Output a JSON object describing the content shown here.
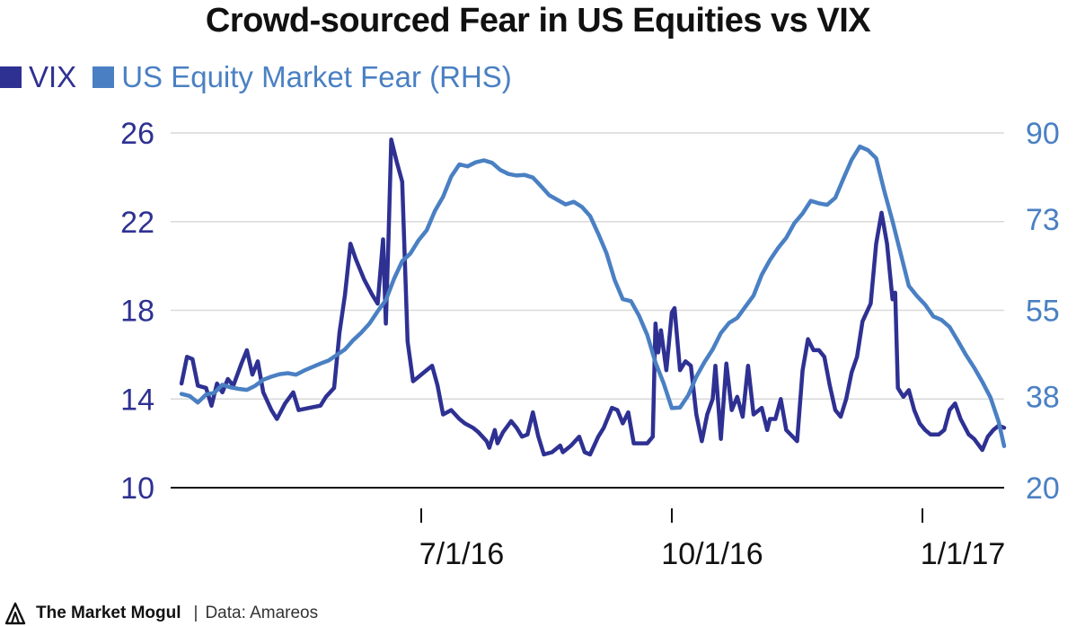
{
  "title": "Crowd-sourced Fear in US Equities vs VIX",
  "footer": {
    "brand": "The Market Mogul",
    "separator": "|",
    "source": "Data: Amareos"
  },
  "colors": {
    "vix": "#2e3192",
    "fear": "#4a80c3",
    "grid": "#d9d9d9",
    "axis": "#111111"
  },
  "chart_data": {
    "type": "line",
    "title": "Crowd-sourced Fear in US Equities vs VIX",
    "x_ticks": [
      {
        "date": "2016-07-01",
        "label": "7/1/16"
      },
      {
        "date": "2016-10-01",
        "label": "10/1/16"
      },
      {
        "date": "2017-01-01",
        "label": "1/1/17"
      }
    ],
    "x_range": [
      "2016-03-31",
      "2017-01-31"
    ],
    "y_left": {
      "ticks": [
        10,
        14,
        18,
        22,
        26
      ],
      "range": [
        10,
        26
      ]
    },
    "y_right": {
      "ticks": [
        20,
        38,
        55,
        73,
        90
      ],
      "range": [
        20,
        90
      ]
    },
    "grid": true,
    "legend": "top-left",
    "series": [
      {
        "name": "VIX",
        "axis": "left",
        "color": "#2e3192",
        "points": [
          [
            "2016-04-04",
            14.7
          ],
          [
            "2016-04-06",
            15.9
          ],
          [
            "2016-04-08",
            15.8
          ],
          [
            "2016-04-10",
            14.6
          ],
          [
            "2016-04-13",
            14.5
          ],
          [
            "2016-04-15",
            13.7
          ],
          [
            "2016-04-17",
            14.7
          ],
          [
            "2016-04-19",
            14.3
          ],
          [
            "2016-04-21",
            14.9
          ],
          [
            "2016-04-23",
            14.6
          ],
          [
            "2016-04-26",
            15.6
          ],
          [
            "2016-04-28",
            16.2
          ],
          [
            "2016-04-30",
            15.1
          ],
          [
            "2016-05-02",
            15.7
          ],
          [
            "2016-05-04",
            14.3
          ],
          [
            "2016-05-07",
            13.5
          ],
          [
            "2016-05-09",
            13.1
          ],
          [
            "2016-05-12",
            13.8
          ],
          [
            "2016-05-15",
            14.3
          ],
          [
            "2016-05-17",
            13.5
          ],
          [
            "2016-05-21",
            13.6
          ],
          [
            "2016-05-25",
            13.7
          ],
          [
            "2016-05-27",
            14.1
          ],
          [
            "2016-05-30",
            14.5
          ],
          [
            "2016-06-01",
            17.0
          ],
          [
            "2016-06-03",
            18.7
          ],
          [
            "2016-06-05",
            21.0
          ],
          [
            "2016-06-07",
            20.3
          ],
          [
            "2016-06-10",
            19.4
          ],
          [
            "2016-06-13",
            18.7
          ],
          [
            "2016-06-15",
            18.3
          ],
          [
            "2016-06-17",
            21.2
          ],
          [
            "2016-06-18",
            17.4
          ],
          [
            "2016-06-19",
            21.3
          ],
          [
            "2016-06-20",
            25.7
          ],
          [
            "2016-06-22",
            24.7
          ],
          [
            "2016-06-24",
            23.8
          ],
          [
            "2016-06-26",
            16.6
          ],
          [
            "2016-06-28",
            14.8
          ],
          [
            "2016-06-30",
            15.0
          ],
          [
            "2016-07-02",
            15.2
          ],
          [
            "2016-07-05",
            15.5
          ],
          [
            "2016-07-07",
            14.6
          ],
          [
            "2016-07-09",
            13.3
          ],
          [
            "2016-07-12",
            13.5
          ],
          [
            "2016-07-15",
            13.1
          ],
          [
            "2016-07-17",
            12.9
          ],
          [
            "2016-07-20",
            12.7
          ],
          [
            "2016-07-22",
            12.5
          ],
          [
            "2016-07-25",
            12.1
          ],
          [
            "2016-07-26",
            11.8
          ],
          [
            "2016-07-28",
            12.6
          ],
          [
            "2016-07-29",
            12.0
          ],
          [
            "2016-07-31",
            12.5
          ],
          [
            "2016-08-03",
            13.0
          ],
          [
            "2016-08-05",
            12.7
          ],
          [
            "2016-08-07",
            12.3
          ],
          [
            "2016-08-09",
            12.4
          ],
          [
            "2016-08-11",
            13.4
          ],
          [
            "2016-08-13",
            12.3
          ],
          [
            "2016-08-15",
            11.5
          ],
          [
            "2016-08-18",
            11.6
          ],
          [
            "2016-08-21",
            11.9
          ],
          [
            "2016-08-22",
            11.6
          ],
          [
            "2016-08-25",
            11.9
          ],
          [
            "2016-08-28",
            12.3
          ],
          [
            "2016-08-30",
            11.6
          ],
          [
            "2016-09-01",
            11.5
          ],
          [
            "2016-09-04",
            12.3
          ],
          [
            "2016-09-06",
            12.7
          ],
          [
            "2016-09-09",
            13.6
          ],
          [
            "2016-09-11",
            13.5
          ],
          [
            "2016-09-13",
            12.9
          ],
          [
            "2016-09-15",
            13.4
          ],
          [
            "2016-09-17",
            12.0
          ],
          [
            "2016-09-22",
            12.0
          ],
          [
            "2016-09-24",
            12.3
          ],
          [
            "2016-09-25",
            17.4
          ],
          [
            "2016-09-26",
            16.1
          ],
          [
            "2016-09-27",
            17.1
          ],
          [
            "2016-09-29",
            15.3
          ],
          [
            "2016-10-01",
            17.9
          ],
          [
            "2016-10-02",
            18.1
          ],
          [
            "2016-10-04",
            15.3
          ],
          [
            "2016-10-06",
            15.7
          ],
          [
            "2016-10-08",
            15.5
          ],
          [
            "2016-10-10",
            13.3
          ],
          [
            "2016-10-12",
            12.1
          ],
          [
            "2016-10-14",
            13.3
          ],
          [
            "2016-10-16",
            14.0
          ],
          [
            "2016-10-17",
            15.5
          ],
          [
            "2016-10-19",
            12.2
          ],
          [
            "2016-10-21",
            15.6
          ],
          [
            "2016-10-23",
            13.5
          ],
          [
            "2016-10-25",
            14.1
          ],
          [
            "2016-10-27",
            13.2
          ],
          [
            "2016-10-29",
            15.5
          ],
          [
            "2016-10-31",
            13.3
          ],
          [
            "2016-11-03",
            13.6
          ],
          [
            "2016-11-05",
            12.6
          ],
          [
            "2016-11-06",
            13.1
          ],
          [
            "2016-11-08",
            13.1
          ],
          [
            "2016-11-10",
            14.0
          ],
          [
            "2016-11-12",
            12.6
          ],
          [
            "2016-11-16",
            12.1
          ],
          [
            "2016-11-18",
            15.3
          ],
          [
            "2016-11-20",
            16.7
          ],
          [
            "2016-11-22",
            16.2
          ],
          [
            "2016-11-24",
            16.2
          ],
          [
            "2016-11-26",
            15.9
          ],
          [
            "2016-11-28",
            14.6
          ],
          [
            "2016-11-30",
            13.5
          ],
          [
            "2016-12-02",
            13.2
          ],
          [
            "2016-12-04",
            14.0
          ],
          [
            "2016-12-06",
            15.2
          ],
          [
            "2016-12-08",
            15.9
          ],
          [
            "2016-12-10",
            17.5
          ],
          [
            "2016-12-13",
            18.3
          ],
          [
            "2016-12-15",
            21.0
          ],
          [
            "2016-12-17",
            22.4
          ],
          [
            "2016-12-19",
            21.0
          ],
          [
            "2016-12-21",
            18.5
          ],
          [
            "2016-12-22",
            18.8
          ],
          [
            "2016-12-23",
            14.5
          ],
          [
            "2016-12-25",
            14.1
          ],
          [
            "2016-12-27",
            14.4
          ],
          [
            "2016-12-29",
            13.5
          ],
          [
            "2016-12-31",
            12.9
          ],
          [
            "2017-01-02",
            12.6
          ],
          [
            "2017-01-04",
            12.4
          ],
          [
            "2017-01-07",
            12.4
          ],
          [
            "2017-01-09",
            12.6
          ],
          [
            "2017-01-11",
            13.5
          ],
          [
            "2017-01-13",
            13.8
          ],
          [
            "2017-01-15",
            13.1
          ],
          [
            "2017-01-18",
            12.4
          ],
          [
            "2017-01-20",
            12.2
          ],
          [
            "2017-01-23",
            11.7
          ],
          [
            "2017-01-25",
            12.3
          ],
          [
            "2017-01-27",
            12.6
          ],
          [
            "2017-01-29",
            12.8
          ],
          [
            "2017-01-31",
            12.7
          ]
        ]
      },
      {
        "name": "US Equity Market Fear (RHS)",
        "axis": "right",
        "color": "#4a80c3",
        "points": [
          [
            "2016-04-04",
            38.5
          ],
          [
            "2016-04-07",
            38.1
          ],
          [
            "2016-04-10",
            36.8
          ],
          [
            "2016-04-13",
            38.4
          ],
          [
            "2016-04-16",
            38.7
          ],
          [
            "2016-04-19",
            40.3
          ],
          [
            "2016-04-22",
            39.8
          ],
          [
            "2016-04-25",
            39.5
          ],
          [
            "2016-04-28",
            39.3
          ],
          [
            "2016-05-01",
            40.1
          ],
          [
            "2016-05-04",
            41.3
          ],
          [
            "2016-05-07",
            41.9
          ],
          [
            "2016-05-10",
            42.4
          ],
          [
            "2016-05-13",
            42.6
          ],
          [
            "2016-05-16",
            42.3
          ],
          [
            "2016-05-19",
            43.1
          ],
          [
            "2016-05-22",
            43.8
          ],
          [
            "2016-05-25",
            44.5
          ],
          [
            "2016-05-28",
            45.1
          ],
          [
            "2016-05-31",
            46.2
          ],
          [
            "2016-06-03",
            47.3
          ],
          [
            "2016-06-06",
            49.1
          ],
          [
            "2016-06-09",
            50.6
          ],
          [
            "2016-06-12",
            52.4
          ],
          [
            "2016-06-15",
            54.8
          ],
          [
            "2016-06-18",
            57.0
          ],
          [
            "2016-06-21",
            61.2
          ],
          [
            "2016-06-24",
            64.7
          ],
          [
            "2016-06-27",
            66.2
          ],
          [
            "2016-06-30",
            68.8
          ],
          [
            "2016-07-03",
            70.8
          ],
          [
            "2016-07-06",
            74.6
          ],
          [
            "2016-07-09",
            77.4
          ],
          [
            "2016-07-12",
            81.4
          ],
          [
            "2016-07-15",
            83.8
          ],
          [
            "2016-07-18",
            83.4
          ],
          [
            "2016-07-21",
            84.2
          ],
          [
            "2016-07-24",
            84.6
          ],
          [
            "2016-07-27",
            84.1
          ],
          [
            "2016-07-30",
            82.7
          ],
          [
            "2016-08-02",
            81.9
          ],
          [
            "2016-08-05",
            81.6
          ],
          [
            "2016-08-08",
            81.7
          ],
          [
            "2016-08-11",
            81.2
          ],
          [
            "2016-08-14",
            79.5
          ],
          [
            "2016-08-17",
            77.7
          ],
          [
            "2016-08-20",
            76.8
          ],
          [
            "2016-08-23",
            75.9
          ],
          [
            "2016-08-26",
            76.4
          ],
          [
            "2016-08-29",
            75.4
          ],
          [
            "2016-09-01",
            73.6
          ],
          [
            "2016-09-04",
            70.1
          ],
          [
            "2016-09-07",
            66.3
          ],
          [
            "2016-09-10",
            61.0
          ],
          [
            "2016-09-13",
            57.2
          ],
          [
            "2016-09-16",
            56.8
          ],
          [
            "2016-09-19",
            53.9
          ],
          [
            "2016-09-22",
            50.1
          ],
          [
            "2016-09-25",
            44.7
          ],
          [
            "2016-09-28",
            40.6
          ],
          [
            "2016-10-01",
            35.7
          ],
          [
            "2016-10-04",
            35.8
          ],
          [
            "2016-10-07",
            38.2
          ],
          [
            "2016-10-10",
            41.9
          ],
          [
            "2016-10-13",
            44.8
          ],
          [
            "2016-10-16",
            47.3
          ],
          [
            "2016-10-19",
            50.5
          ],
          [
            "2016-10-22",
            52.5
          ],
          [
            "2016-10-25",
            53.5
          ],
          [
            "2016-10-28",
            55.7
          ],
          [
            "2016-10-31",
            57.9
          ],
          [
            "2016-11-03",
            62.0
          ],
          [
            "2016-11-06",
            64.9
          ],
          [
            "2016-11-09",
            67.3
          ],
          [
            "2016-11-12",
            69.3
          ],
          [
            "2016-11-15",
            72.2
          ],
          [
            "2016-11-18",
            74.1
          ],
          [
            "2016-11-21",
            76.6
          ],
          [
            "2016-11-24",
            76.1
          ],
          [
            "2016-11-27",
            75.8
          ],
          [
            "2016-11-30",
            77.2
          ],
          [
            "2016-12-03",
            81.0
          ],
          [
            "2016-12-06",
            84.7
          ],
          [
            "2016-12-09",
            87.3
          ],
          [
            "2016-12-12",
            86.6
          ],
          [
            "2016-12-15",
            85.0
          ],
          [
            "2016-12-18",
            78.5
          ],
          [
            "2016-12-21",
            72.6
          ],
          [
            "2016-12-24",
            66.2
          ],
          [
            "2016-12-27",
            59.8
          ],
          [
            "2016-12-30",
            57.8
          ],
          [
            "2017-01-02",
            56.1
          ],
          [
            "2017-01-05",
            53.8
          ],
          [
            "2017-01-08",
            53.1
          ],
          [
            "2017-01-11",
            51.7
          ],
          [
            "2017-01-14",
            49.0
          ],
          [
            "2017-01-17",
            46.2
          ],
          [
            "2017-01-20",
            43.7
          ],
          [
            "2017-01-23",
            40.9
          ],
          [
            "2017-01-26",
            37.8
          ],
          [
            "2017-01-29",
            33.0
          ],
          [
            "2017-01-31",
            28.2
          ]
        ]
      }
    ]
  }
}
